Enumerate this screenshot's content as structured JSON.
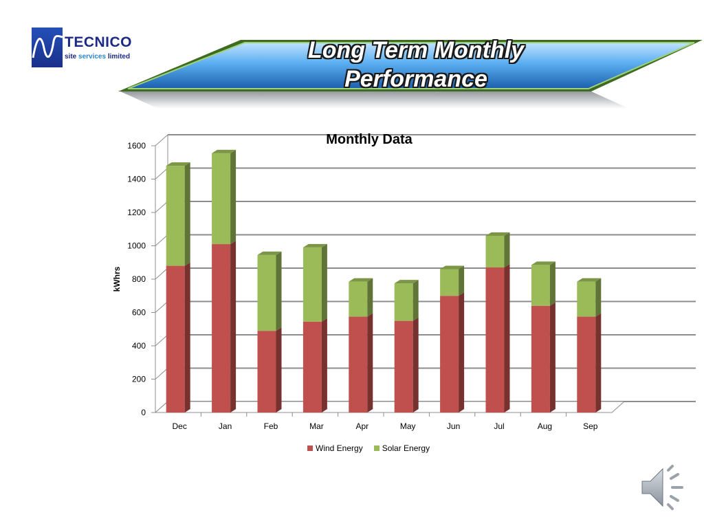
{
  "slide": {
    "title": "Long Term Monthly Performance"
  },
  "logo": {
    "name": "TECNICO",
    "tagline_1": "site",
    "tagline_2": "services",
    "tagline_3": "limited"
  },
  "colors": {
    "wind": "#c0504d",
    "solar": "#9bbb59",
    "banner": "#4da6e8"
  },
  "icons": [
    "logo-wave-icon",
    "speaker-icon"
  ],
  "chart_data": {
    "type": "bar",
    "stacked": true,
    "title": "Monthly Data",
    "xlabel": "",
    "ylabel": "kWhrs",
    "ylim": [
      0,
      1600
    ],
    "yticks": [
      0,
      200,
      400,
      600,
      800,
      1000,
      1200,
      1400,
      1600
    ],
    "grid": true,
    "legend_position": "bottom",
    "categories": [
      "Dec",
      "Jan",
      "Feb",
      "Mar",
      "Apr",
      "May",
      "Jun",
      "Jul",
      "Aug",
      "Sep"
    ],
    "series": [
      {
        "name": "Wind Energy",
        "values": [
          880,
          1010,
          490,
          545,
          575,
          550,
          700,
          870,
          640,
          575
        ]
      },
      {
        "name": "Solar Energy",
        "values": [
          600,
          545,
          455,
          445,
          210,
          225,
          160,
          190,
          245,
          210
        ]
      }
    ]
  }
}
